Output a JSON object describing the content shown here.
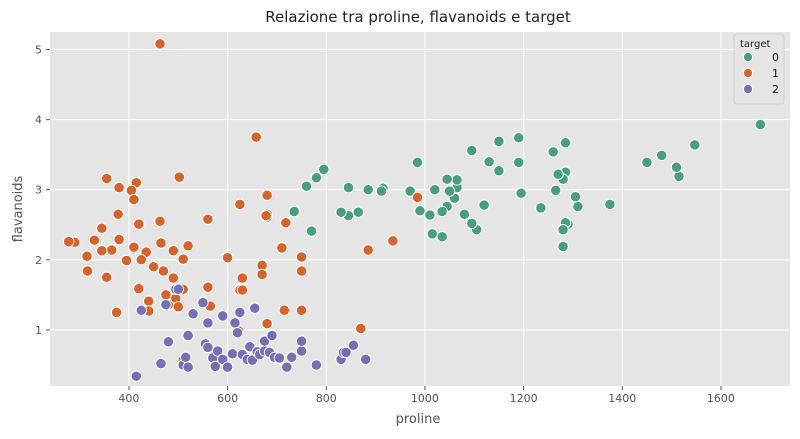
{
  "chart_data": {
    "type": "scatter",
    "title": "Relazione tra proline, flavanoids e target",
    "xlabel": "proline",
    "ylabel": "flavanoids",
    "xlim": [
      240,
      1740
    ],
    "ylim": [
      0.2,
      5.25
    ],
    "xticks": [
      400,
      600,
      800,
      1000,
      1200,
      1400,
      1600
    ],
    "yticks": [
      1,
      2,
      3,
      4,
      5
    ],
    "grid": true,
    "legend": {
      "title": "target",
      "placement": "top-right"
    },
    "series": [
      {
        "name": "0",
        "color": "#4a9e80",
        "points": [
          [
            1680,
            3.93
          ],
          [
            1547,
            3.64
          ],
          [
            1515,
            3.19
          ],
          [
            1510,
            3.32
          ],
          [
            1480,
            3.49
          ],
          [
            1450,
            3.39
          ],
          [
            1375,
            2.79
          ],
          [
            1310,
            2.76
          ],
          [
            1305,
            2.9
          ],
          [
            1290,
            2.51
          ],
          [
            1285,
            2.53
          ],
          [
            1285,
            3.67
          ],
          [
            1285,
            3.25
          ],
          [
            1280,
            3.15
          ],
          [
            1280,
            2.43
          ],
          [
            1280,
            2.19
          ],
          [
            1270,
            3.22
          ],
          [
            1265,
            2.99
          ],
          [
            1260,
            3.54
          ],
          [
            1235,
            2.74
          ],
          [
            1195,
            2.95
          ],
          [
            1190,
            3.74
          ],
          [
            1190,
            3.39
          ],
          [
            1150,
            3.27
          ],
          [
            1150,
            3.69
          ],
          [
            1130,
            3.4
          ],
          [
            1120,
            2.78
          ],
          [
            1105,
            2.43
          ],
          [
            1095,
            3.56
          ],
          [
            1095,
            2.52
          ],
          [
            1080,
            2.65
          ],
          [
            1065,
            3.03
          ],
          [
            1065,
            3.14
          ],
          [
            1060,
            2.88
          ],
          [
            1050,
            2.98
          ],
          [
            1045,
            2.76
          ],
          [
            1045,
            3.15
          ],
          [
            1035,
            2.33
          ],
          [
            1035,
            2.69
          ],
          [
            1020,
            3.0
          ],
          [
            1015,
            2.37
          ],
          [
            1010,
            2.64
          ],
          [
            990,
            2.7
          ],
          [
            985,
            3.39
          ],
          [
            970,
            2.98
          ],
          [
            885,
            3.0
          ],
          [
            865,
            2.68
          ],
          [
            845,
            3.03
          ],
          [
            845,
            2.63
          ],
          [
            830,
            2.68
          ],
          [
            795,
            3.29
          ],
          [
            780,
            3.17
          ],
          [
            770,
            2.41
          ],
          [
            760,
            3.05
          ],
          [
            735,
            2.69
          ],
          [
            680,
            2.61
          ],
          [
            915,
            3.02
          ],
          [
            912,
            2.98
          ]
        ]
      },
      {
        "name": "1",
        "color": "#d4632c",
        "points": [
          [
            463,
            5.08
          ],
          [
            658,
            3.75
          ],
          [
            502,
            3.18
          ],
          [
            355,
            3.16
          ],
          [
            415,
            3.1
          ],
          [
            380,
            3.03
          ],
          [
            405,
            2.99
          ],
          [
            410,
            2.86
          ],
          [
            680,
            2.92
          ],
          [
            680,
            2.65
          ],
          [
            625,
            2.79
          ],
          [
            560,
            2.58
          ],
          [
            678,
            2.63
          ],
          [
            718,
            2.53
          ],
          [
            463,
            2.55
          ],
          [
            420,
            2.51
          ],
          [
            378,
            2.65
          ],
          [
            345,
            2.45
          ],
          [
            985,
            2.89
          ],
          [
            935,
            2.27
          ],
          [
            885,
            2.14
          ],
          [
            710,
            2.17
          ],
          [
            750,
            2.04
          ],
          [
            670,
            1.92
          ],
          [
            600,
            2.03
          ],
          [
            520,
            2.2
          ],
          [
            510,
            2.01
          ],
          [
            490,
            2.13
          ],
          [
            465,
            2.24
          ],
          [
            435,
            2.11
          ],
          [
            410,
            2.18
          ],
          [
            380,
            2.29
          ],
          [
            365,
            2.14
          ],
          [
            345,
            2.13
          ],
          [
            330,
            2.28
          ],
          [
            315,
            2.05
          ],
          [
            290,
            2.25
          ],
          [
            278,
            2.26
          ],
          [
            316,
            1.84
          ],
          [
            355,
            1.75
          ],
          [
            395,
            1.99
          ],
          [
            425,
            2.0
          ],
          [
            450,
            1.9
          ],
          [
            470,
            1.84
          ],
          [
            490,
            1.74
          ],
          [
            510,
            1.58
          ],
          [
            560,
            1.61
          ],
          [
            630,
            1.74
          ],
          [
            670,
            1.79
          ],
          [
            750,
            1.84
          ],
          [
            420,
            1.59
          ],
          [
            440,
            1.41
          ],
          [
            440,
            1.27
          ],
          [
            475,
            1.5
          ],
          [
            480,
            1.36
          ],
          [
            495,
            1.45
          ],
          [
            500,
            1.33
          ],
          [
            565,
            1.34
          ],
          [
            625,
            1.57
          ],
          [
            630,
            1.57
          ],
          [
            715,
            1.28
          ],
          [
            750,
            1.28
          ],
          [
            375,
            1.25
          ],
          [
            870,
            1.02
          ],
          [
            680,
            1.09
          ],
          [
            622,
            0.99
          ],
          [
            510,
            0.57
          ]
        ]
      },
      {
        "name": "2",
        "color": "#7570b3",
        "points": [
          [
            415,
            0.34
          ],
          [
            425,
            1.28
          ],
          [
            475,
            1.36
          ],
          [
            480,
            0.83
          ],
          [
            465,
            0.52
          ],
          [
            495,
            1.58
          ],
          [
            500,
            1.58
          ],
          [
            510,
            0.5
          ],
          [
            515,
            0.61
          ],
          [
            520,
            0.92
          ],
          [
            520,
            0.47
          ],
          [
            530,
            1.23
          ],
          [
            550,
            1.39
          ],
          [
            555,
            0.8
          ],
          [
            560,
            0.75
          ],
          [
            560,
            1.1
          ],
          [
            570,
            0.6
          ],
          [
            575,
            0.48
          ],
          [
            580,
            0.7
          ],
          [
            590,
            0.58
          ],
          [
            590,
            1.2
          ],
          [
            600,
            0.47
          ],
          [
            610,
            0.66
          ],
          [
            615,
            1.1
          ],
          [
            620,
            0.96
          ],
          [
            625,
            1.25
          ],
          [
            630,
            0.65
          ],
          [
            640,
            0.58
          ],
          [
            645,
            0.76
          ],
          [
            650,
            0.57
          ],
          [
            655,
            1.31
          ],
          [
            660,
            0.69
          ],
          [
            665,
            0.65
          ],
          [
            675,
            0.7
          ],
          [
            675,
            0.84
          ],
          [
            685,
            0.68
          ],
          [
            690,
            0.92
          ],
          [
            695,
            0.61
          ],
          [
            705,
            0.6
          ],
          [
            720,
            0.47
          ],
          [
            730,
            0.61
          ],
          [
            750,
            0.7
          ],
          [
            750,
            0.84
          ],
          [
            780,
            0.5
          ],
          [
            830,
            0.58
          ],
          [
            835,
            0.68
          ],
          [
            840,
            0.68
          ],
          [
            855,
            0.78
          ],
          [
            880,
            0.58
          ]
        ]
      }
    ]
  }
}
